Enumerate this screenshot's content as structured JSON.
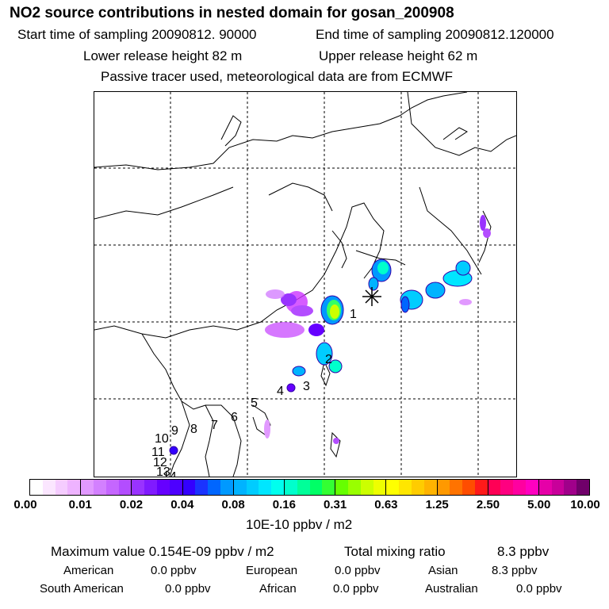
{
  "header": {
    "title": "NO2 source contributions in nested domain for gosan_200908",
    "start_label": "Start time of sampling 20090812. 90000",
    "end_label": "End time of sampling 20090812.120000",
    "lower_release": "Lower release height   82 m",
    "upper_release": "Upper release height   62 m",
    "tracer_note": "Passive tracer used, meteorological data are from ECMWF"
  },
  "map": {
    "region_labels": [
      "1",
      "2",
      "3",
      "4",
      "5",
      "6",
      "7",
      "8",
      "9",
      "10",
      "11",
      "12",
      "13",
      "14"
    ],
    "receptor_marker": "star-marker"
  },
  "colorbar": {
    "ticks": [
      "0.00",
      "0.01",
      "0.02",
      "0.04",
      "0.08",
      "0.16",
      "0.31",
      "0.63",
      "1.25",
      "2.50",
      "5.00",
      "10.00"
    ],
    "unit": "10E-10 ppbv / m2",
    "segment_colors": [
      [
        "#ffffff",
        "#fbe6ff",
        "#f5ccff",
        "#eeb3ff"
      ],
      [
        "#e199ff",
        "#d380ff",
        "#c566ff",
        "#b34dff"
      ],
      [
        "#9933ff",
        "#801aff",
        "#6600ff",
        "#4d00ff"
      ],
      [
        "#3300ff",
        "#1a33ff",
        "#0066ff",
        "#0099ff"
      ],
      [
        "#00b3ff",
        "#00ccff",
        "#00e6ff",
        "#00ffee"
      ],
      [
        "#00ffcc",
        "#00ff99",
        "#00ff66",
        "#33ff33"
      ],
      [
        "#66ff00",
        "#99ff00",
        "#ccff00",
        "#eeff00"
      ],
      [
        "#ffff00",
        "#ffe600",
        "#ffcc00",
        "#ffb300"
      ],
      [
        "#ff9900",
        "#ff7300",
        "#ff4d00",
        "#ff1a1a"
      ],
      [
        "#ff0055",
        "#ff0080",
        "#ff00a0",
        "#ff00c0"
      ],
      [
        "#e600a8",
        "#c8009a",
        "#a0008a",
        "#70006a"
      ]
    ]
  },
  "summary": {
    "max_label": "Maximum value  0.154E-09 ppbv / m2",
    "total_label": "Total mixing ratio",
    "total_value": "8.3 ppbv",
    "american_label": "American",
    "american_value": "0.0 ppbv",
    "european_label": "European",
    "european_value": "0.0 ppbv",
    "asian_label": "Asian",
    "asian_value": "8.3 ppbv",
    "south_american_label": "South American",
    "south_american_value": "0.0 ppbv",
    "african_label": "African",
    "african_value": "0.0 ppbv",
    "australian_label": "Australian",
    "australian_value": "0.0 ppbv"
  }
}
